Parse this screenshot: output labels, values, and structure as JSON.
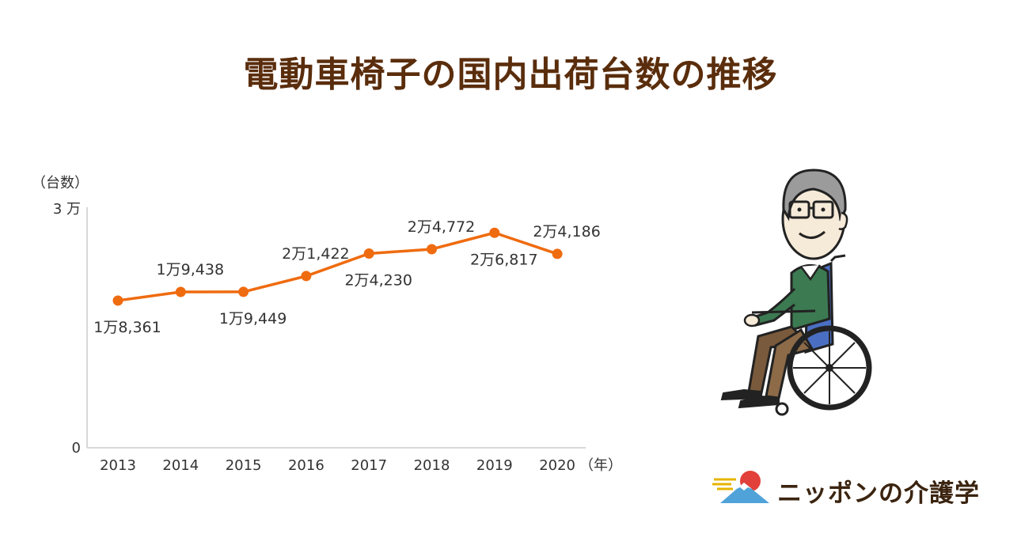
{
  "title": "電動車椅子の国内出荷台数の推移",
  "brand": {
    "name": "ニッポンの介護学"
  },
  "chart_data": {
    "type": "line",
    "ylabel": "（台数）",
    "xunit": "（年）",
    "y_tick_labels": [
      "0",
      "3 万"
    ],
    "ylim": [
      0,
      30000
    ],
    "categories": [
      "2013",
      "2014",
      "2015",
      "2016",
      "2017",
      "2018",
      "2019",
      "2020"
    ],
    "values": [
      18361,
      19438,
      19449,
      21422,
      24230,
      24772,
      26817,
      24186
    ],
    "data_labels": [
      "1万8,361",
      "1万9,438",
      "1万9,449",
      "2万1,422",
      "2万4,230",
      "2万4,772",
      "2万6,817",
      "2万4,186"
    ],
    "series_color": "#ef6b0f",
    "grid": false
  }
}
